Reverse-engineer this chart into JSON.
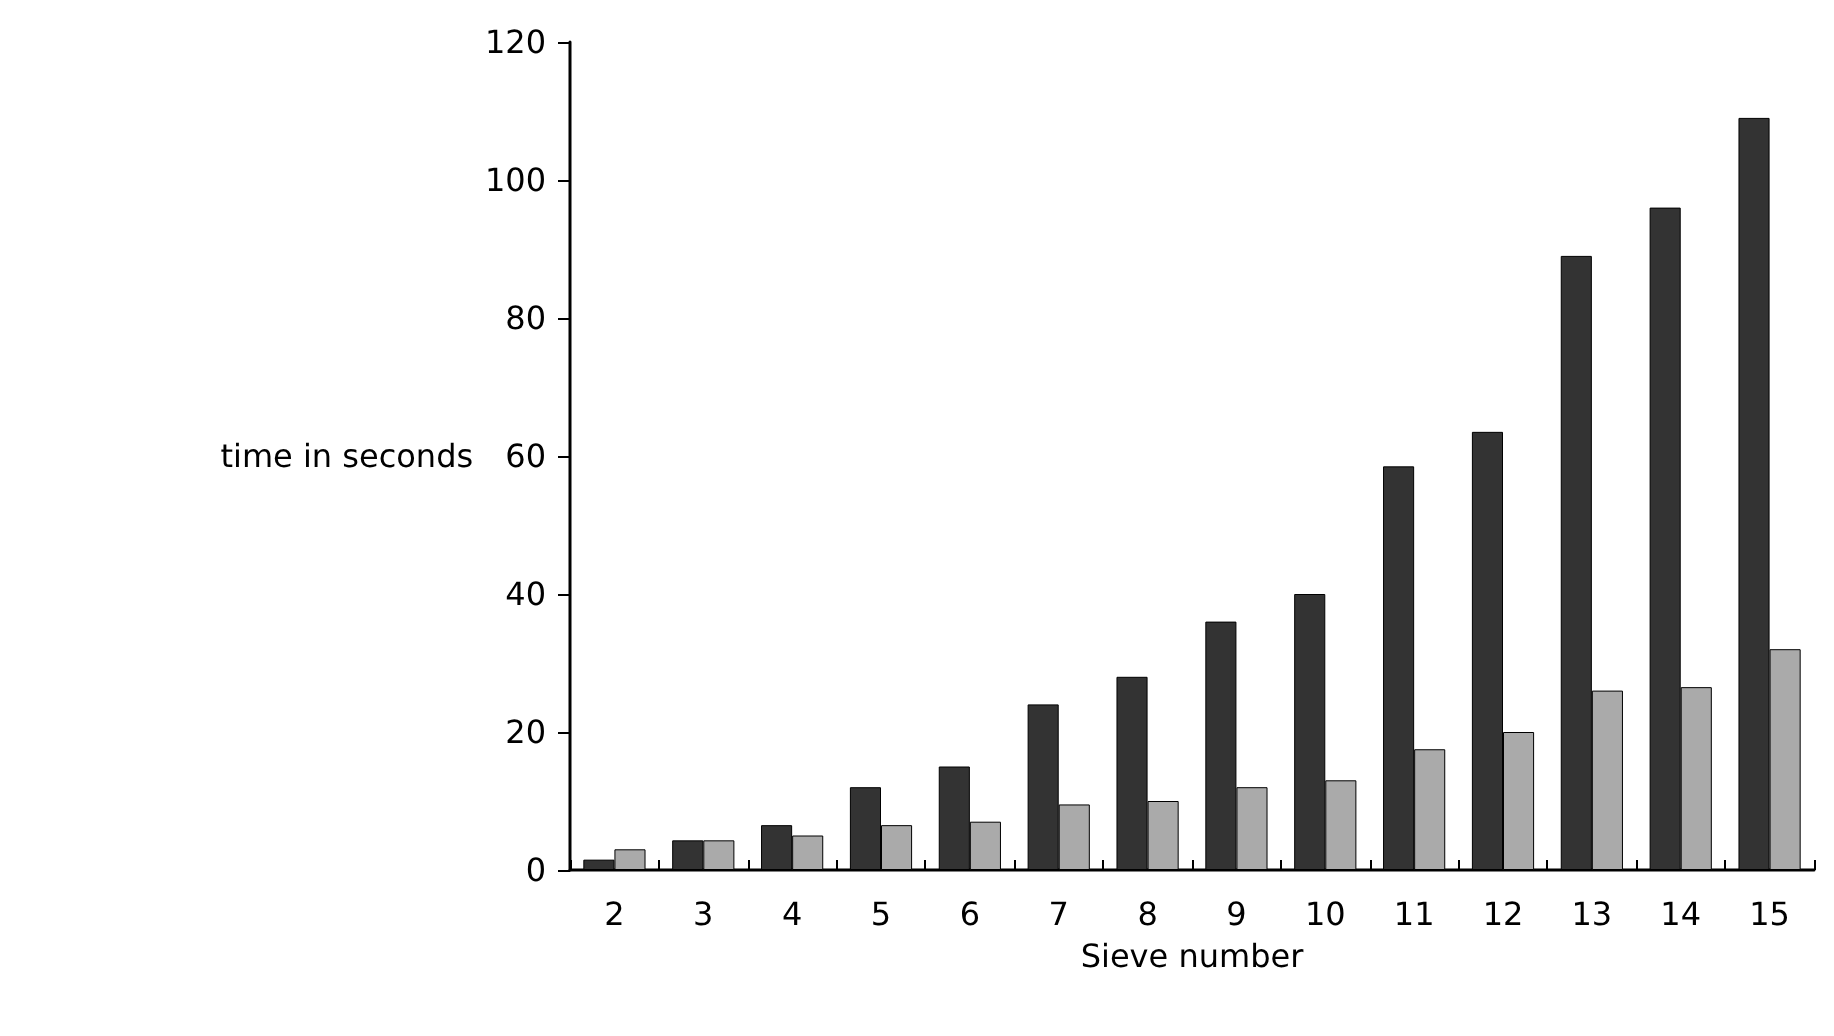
{
  "chart_data": {
    "type": "bar",
    "xlabel": "Sieve number",
    "ylabel": "time in seconds",
    "categories": [
      "2",
      "3",
      "4",
      "5",
      "6",
      "7",
      "8",
      "9",
      "10",
      "11",
      "12",
      "13",
      "14",
      "15"
    ],
    "series": [
      {
        "color": "#333333",
        "values": [
          1.5,
          4.3,
          6.5,
          12,
          15,
          24,
          28,
          36,
          40,
          58.5,
          63.5,
          89,
          96,
          109
        ]
      },
      {
        "color": "#aaaaaa",
        "values": [
          3,
          4.3,
          5,
          6.5,
          7,
          9.5,
          10,
          12,
          13,
          17.5,
          20,
          26,
          26.5,
          32
        ]
      }
    ],
    "ylim": [
      0,
      120
    ],
    "yticks": [
      0,
      20,
      40,
      60,
      80,
      100,
      120
    ],
    "grid": false
  }
}
